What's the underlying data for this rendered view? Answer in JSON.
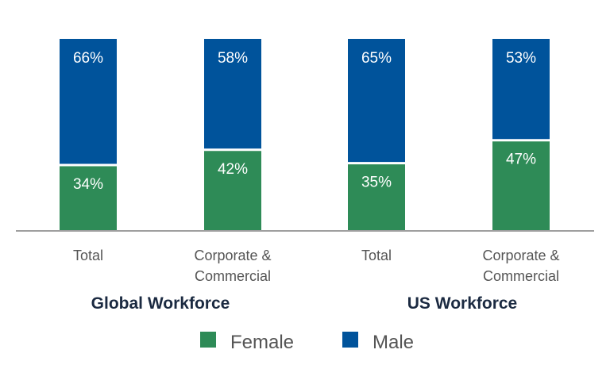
{
  "chart_data": {
    "type": "bar",
    "stacked": true,
    "unit": "%",
    "ylim": [
      0,
      100
    ],
    "groups": [
      {
        "name": "Global Workforce",
        "categories": [
          "Total",
          "Corporate & Commercial"
        ]
      },
      {
        "name": "US Workforce",
        "categories": [
          "Total",
          "Corporate & Commercial"
        ]
      }
    ],
    "categories": [
      "Total",
      "Corporate & Commercial",
      "Total",
      "Corporate & Commercial"
    ],
    "series": [
      {
        "name": "Female",
        "color": "#2e8b57",
        "values": [
          34,
          42,
          35,
          47
        ],
        "labels": [
          "34%",
          "42%",
          "35%",
          "47%"
        ]
      },
      {
        "name": "Male",
        "color": "#00539b",
        "values": [
          66,
          58,
          65,
          53
        ],
        "labels": [
          "66%",
          "58%",
          "65%",
          "53%"
        ]
      }
    ],
    "legend": "bottom-center",
    "grid": false
  },
  "colors": {
    "axis": "#9e9e9e",
    "tick_text": "#555555",
    "group_text": "#1b2a41"
  }
}
